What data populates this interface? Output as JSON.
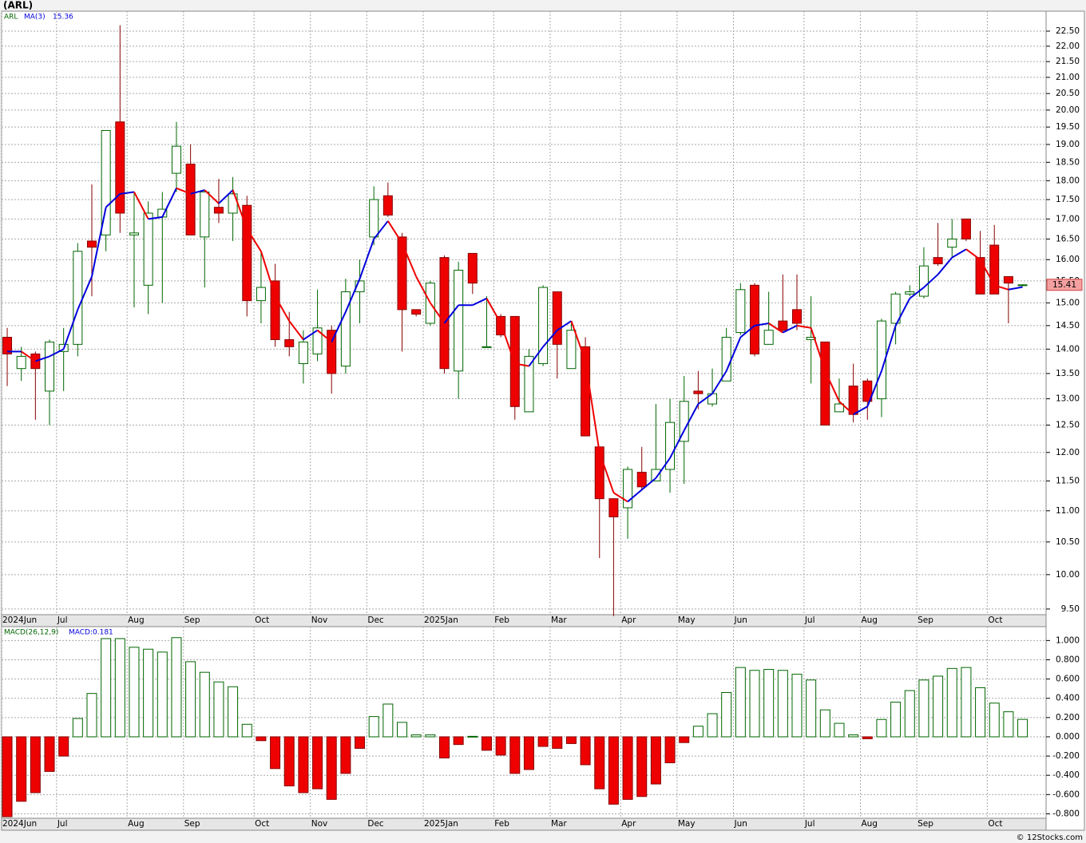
{
  "chart_data": [
    {
      "type": "candlestick",
      "title": "(ARL)",
      "legend": [
        "ARL",
        "MA(3)",
        "15.36"
      ],
      "last_price_label": "15.41",
      "up_color": "#006600",
      "down_color": "#ee0000",
      "ma_rise_color": "#0000dd",
      "ma_fall_color": "#ee0000",
      "log_scale": true,
      "grid": true,
      "categories": [
        "2024Jun",
        null,
        null,
        null,
        "Jul",
        null,
        null,
        null,
        null,
        "Aug",
        null,
        null,
        null,
        "Sep",
        null,
        null,
        null,
        null,
        "Oct",
        null,
        null,
        null,
        "Nov",
        null,
        null,
        null,
        "Dec",
        null,
        null,
        null,
        "2025Jan",
        null,
        null,
        null,
        null,
        "Feb",
        null,
        null,
        null,
        "Mar",
        null,
        null,
        null,
        null,
        "Apr",
        null,
        null,
        null,
        "May",
        null,
        null,
        null,
        "Jun",
        null,
        null,
        null,
        null,
        "Jul",
        null,
        null,
        null,
        "Aug",
        null,
        null,
        null,
        "Sep",
        null,
        null,
        null,
        null,
        "Oct",
        null,
        null
      ],
      "open": [
        14.25,
        13.6,
        13.9,
        13.15,
        13.95,
        14.1,
        16.45,
        16.6,
        19.65,
        16.6,
        15.4,
        17.05,
        18.2,
        18.45,
        16.55,
        17.3,
        17.15,
        17.35,
        15.05,
        15.5,
        14.2,
        13.7,
        13.9,
        14.4,
        13.65,
        15.25,
        16.55,
        17.6,
        16.55,
        14.85,
        14.55,
        16.05,
        13.55,
        16.15,
        14.05,
        14.7,
        14.7,
        12.75,
        13.7,
        15.25,
        13.6,
        14.05,
        12.1,
        11.2,
        11.05,
        11.65,
        11.5,
        11.7,
        12.2,
        13.15,
        12.9,
        13.35,
        14.35,
        15.4,
        14.1,
        14.6,
        14.85,
        14.2,
        14.15,
        12.75,
        13.25,
        13.35,
        13.0,
        14.55,
        15.2,
        15.15,
        16.05,
        16.3,
        17.0,
        16.05,
        16.35,
        15.6,
        15.4
      ],
      "high": [
        14.45,
        14.05,
        13.95,
        14.2,
        14.45,
        16.4,
        17.9,
        19.4,
        22.7,
        17.7,
        17.45,
        17.7,
        19.65,
        19.0,
        17.75,
        18.05,
        18.1,
        17.6,
        16.2,
        15.9,
        14.8,
        14.4,
        15.3,
        14.5,
        15.55,
        16.0,
        17.85,
        17.95,
        16.65,
        14.85,
        15.5,
        16.1,
        15.95,
        16.15,
        15.15,
        14.75,
        14.7,
        14.0,
        15.4,
        15.25,
        14.55,
        14.25,
        12.1,
        11.2,
        11.75,
        12.1,
        12.9,
        13.0,
        13.45,
        13.55,
        13.6,
        14.45,
        15.45,
        15.45,
        15.25,
        15.65,
        15.65,
        15.15,
        14.15,
        13.4,
        13.7,
        13.4,
        14.65,
        15.25,
        15.4,
        16.3,
        16.9,
        17.0,
        17.0,
        16.7,
        16.85,
        15.6,
        15.42
      ],
      "low": [
        13.25,
        13.35,
        12.6,
        12.5,
        13.15,
        13.85,
        15.15,
        16.2,
        16.65,
        14.9,
        14.75,
        15.0,
        17.7,
        16.6,
        15.35,
        16.9,
        16.45,
        14.7,
        14.55,
        14.05,
        13.85,
        13.3,
        13.75,
        13.1,
        13.5,
        14.55,
        16.35,
        17.05,
        13.95,
        14.7,
        14.5,
        13.5,
        13.0,
        15.2,
        14.05,
        14.25,
        12.6,
        12.75,
        13.65,
        13.4,
        13.6,
        12.3,
        10.25,
        9.4,
        10.55,
        11.35,
        11.5,
        11.3,
        11.45,
        12.8,
        12.85,
        13.35,
        14.3,
        13.85,
        14.1,
        14.35,
        14.4,
        13.3,
        12.5,
        12.75,
        12.55,
        12.6,
        12.65,
        14.1,
        15.15,
        15.1,
        15.85,
        16.05,
        16.45,
        15.2,
        15.2,
        14.55,
        15.38
      ],
      "close": [
        13.9,
        13.85,
        13.6,
        14.15,
        14.1,
        16.2,
        16.3,
        19.4,
        17.15,
        16.65,
        17.15,
        17.25,
        18.95,
        16.6,
        17.7,
        17.15,
        17.65,
        15.05,
        15.35,
        14.2,
        14.05,
        14.15,
        14.45,
        13.5,
        15.25,
        15.5,
        17.5,
        17.1,
        14.85,
        14.75,
        15.45,
        13.6,
        15.75,
        15.45,
        14.05,
        14.3,
        12.85,
        13.85,
        15.35,
        14.1,
        14.4,
        12.3,
        11.2,
        10.9,
        11.7,
        11.4,
        11.7,
        12.55,
        12.95,
        13.1,
        13.1,
        14.25,
        15.3,
        13.9,
        14.4,
        14.4,
        14.55,
        14.25,
        12.5,
        12.9,
        12.7,
        12.95,
        14.6,
        15.2,
        15.25,
        15.85,
        15.9,
        16.5,
        16.5,
        15.2,
        15.2,
        15.45,
        15.41
      ],
      "ma": [
        13.95,
        13.95,
        13.75,
        13.85,
        14.0,
        14.85,
        15.6,
        17.3,
        17.65,
        17.7,
        17.0,
        17.05,
        17.8,
        17.65,
        17.75,
        17.4,
        17.75,
        16.75,
        16.2,
        15.15,
        14.6,
        14.2,
        14.4,
        14.15,
        14.8,
        15.55,
        16.5,
        16.95,
        16.4,
        15.6,
        15.0,
        14.55,
        14.95,
        14.95,
        15.1,
        14.55,
        13.7,
        13.65,
        14.05,
        14.4,
        14.6,
        13.75,
        12.0,
        11.3,
        11.15,
        11.35,
        11.55,
        11.9,
        12.4,
        12.9,
        13.1,
        13.55,
        14.25,
        14.5,
        14.55,
        14.35,
        14.5,
        14.45,
        13.55,
        12.95,
        12.7,
        12.85,
        13.55,
        14.5,
        15.1,
        15.35,
        15.65,
        16.05,
        16.25,
        16.0,
        15.4,
        15.3,
        15.36
      ],
      "ylim": [
        9.42,
        23.18
      ],
      "yticks": [
        {
          "value": 9.5,
          "label": "9.50"
        },
        {
          "value": 10,
          "label": "10.00"
        },
        {
          "value": 10.5,
          "label": "10.50"
        },
        {
          "value": 11,
          "label": "11.00"
        },
        {
          "value": 11.5,
          "label": "11.50"
        },
        {
          "value": 12,
          "label": "12.00"
        },
        {
          "value": 12.5,
          "label": "12.50"
        },
        {
          "value": 13,
          "label": "13.00"
        },
        {
          "value": 13.5,
          "label": "13.50"
        },
        {
          "value": 14,
          "label": "14.00"
        },
        {
          "value": 14.5,
          "label": "14.50"
        },
        {
          "value": 15,
          "label": "15.00"
        },
        {
          "value": 15.5,
          "label": "15.50"
        },
        {
          "value": 16,
          "label": "16.00"
        },
        {
          "value": 16.5,
          "label": "16.50"
        },
        {
          "value": 17,
          "label": "17.00"
        },
        {
          "value": 17.5,
          "label": "17.50"
        },
        {
          "value": 18,
          "label": "18.00"
        },
        {
          "value": 18.5,
          "label": "18.50"
        },
        {
          "value": 19,
          "label": "19.00"
        },
        {
          "value": 19.5,
          "label": "19.50"
        },
        {
          "value": 20,
          "label": "20.00"
        },
        {
          "value": 20.5,
          "label": "20.50"
        },
        {
          "value": 21,
          "label": "21.00"
        },
        {
          "value": 21.5,
          "label": "21.50"
        },
        {
          "value": 22,
          "label": "22.00"
        },
        {
          "value": 22.5,
          "label": "22.50"
        }
      ]
    },
    {
      "type": "bar",
      "legend": [
        "MACD(26,12,9)",
        "MACD:0.181"
      ],
      "up_color": "#006600",
      "down_color": "#ee0000",
      "grid": true,
      "footer": "© 12Stocks.com",
      "values": [
        -0.83,
        -0.67,
        -0.58,
        -0.36,
        -0.2,
        0.19,
        0.45,
        1.02,
        1.02,
        0.93,
        0.91,
        0.88,
        1.03,
        0.78,
        0.67,
        0.57,
        0.52,
        0.13,
        -0.04,
        -0.33,
        -0.51,
        -0.58,
        -0.54,
        -0.65,
        -0.38,
        -0.12,
        0.21,
        0.34,
        0.15,
        0.02,
        0.02,
        -0.22,
        -0.08,
        0.005,
        -0.14,
        -0.19,
        -0.38,
        -0.34,
        -0.1,
        -0.12,
        -0.07,
        -0.29,
        -0.54,
        -0.7,
        -0.65,
        -0.62,
        -0.49,
        -0.27,
        -0.06,
        0.11,
        0.24,
        0.46,
        0.72,
        0.69,
        0.7,
        0.69,
        0.65,
        0.59,
        0.28,
        0.14,
        0.02,
        -0.02,
        0.18,
        0.36,
        0.48,
        0.59,
        0.63,
        0.71,
        0.72,
        0.51,
        0.35,
        0.26,
        0.181
      ],
      "ylim": [
        -0.846,
        1.144
      ],
      "yticks": [
        {
          "value": 1,
          "label": "1.000"
        },
        {
          "value": 0.8,
          "label": "0.800"
        },
        {
          "value": 0.6,
          "label": "0.600"
        },
        {
          "value": 0.4,
          "label": "0.400"
        },
        {
          "value": 0.2,
          "label": "0.200"
        },
        {
          "value": 0,
          "label": "0.000"
        },
        {
          "value": -0.2,
          "label": "-0.200"
        },
        {
          "value": -0.4,
          "label": "-0.400"
        },
        {
          "value": -0.6,
          "label": "-0.600"
        },
        {
          "value": -0.8,
          "label": "-0.800"
        }
      ]
    }
  ]
}
